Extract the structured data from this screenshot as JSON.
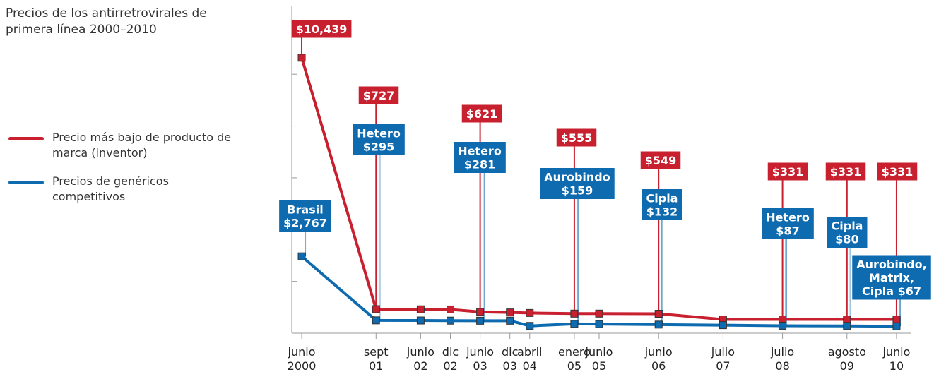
{
  "chart_data": {
    "type": "line",
    "title": "Precios de los antirretrovirales de\nprimera línea 2000–2010",
    "x": [
      "2000-06",
      "2001-09",
      "2002-06",
      "2002-12",
      "2003-06",
      "2003-12",
      "2004-04",
      "2005-01",
      "2005-06",
      "2006-06",
      "2007-07",
      "2008-07",
      "2009-08",
      "2010-06"
    ],
    "xlim": [
      "2000-04",
      "2010-09"
    ],
    "xticks": [
      {
        "value": "2000-06",
        "label": "junio\n2000"
      },
      {
        "value": "2001-09",
        "label": "sept\n01"
      },
      {
        "value": "2002-06",
        "label": "junio\n02"
      },
      {
        "value": "2002-12",
        "label": "dic\n02"
      },
      {
        "value": "2003-06",
        "label": "junio\n03"
      },
      {
        "value": "2003-12",
        "label": "dic\n03"
      },
      {
        "value": "2004-04",
        "label": "abril\n04"
      },
      {
        "value": "2005-01",
        "label": "enero\n05"
      },
      {
        "value": "2005-06",
        "label": "junio\n05"
      },
      {
        "value": "2006-06",
        "label": "junio\n06"
      },
      {
        "value": "2007-07",
        "label": "julio\n07"
      },
      {
        "value": "2008-07",
        "label": "julio\n08"
      },
      {
        "value": "2009-08",
        "label": "agosto\n09"
      },
      {
        "value": "2010-06",
        "label": "junio\n10"
      }
    ],
    "ylim": [
      -200,
      12450
    ],
    "yticks": [
      1800,
      3800,
      5800,
      7800,
      9800
    ],
    "series": [
      {
        "name": "Precio más bajo de producto de marca (inventor)",
        "color": "#c8202f",
        "values": [
          10439,
          727,
          720,
          715,
          621,
          600,
          580,
          555,
          555,
          549,
          331,
          331,
          331,
          331
        ],
        "value_labels": [
          "$10,439",
          "$727",
          null,
          null,
          "$621",
          null,
          null,
          "$555",
          null,
          "$549",
          null,
          "$331",
          "$331",
          "$331"
        ]
      },
      {
        "name": "Precios de genéricos competitivos",
        "color": "#0e6bb0",
        "values": [
          2767,
          295,
          290,
          285,
          281,
          281,
          80,
          159,
          150,
          132,
          110,
          87,
          80,
          67
        ],
        "value_labels": [
          "Brasil\n$2,767",
          "Hetero\n$295",
          null,
          null,
          "Hetero\n$281",
          null,
          null,
          "Aurobindo\n$159",
          null,
          "Cipla\n$132",
          null,
          "Hetero\n$87",
          "Cipla\n$80",
          "Aurobindo,\nMatrix,\nCipla $67"
        ]
      }
    ]
  }
}
